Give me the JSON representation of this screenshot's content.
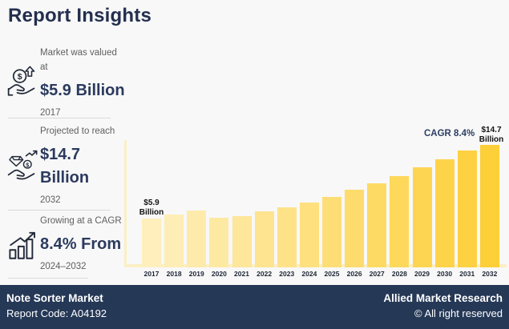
{
  "page": {
    "title": "Report Insights",
    "background": "#F8F8F8"
  },
  "stats": [
    {
      "icon": "money-hand-icon",
      "label": "Market was valued at",
      "value": "$5.9 Billion",
      "period": "2017"
    },
    {
      "icon": "diamond-hand-icon",
      "label": "Projected to reach",
      "value": "$14.7 Billion",
      "period": "2032"
    },
    {
      "icon": "growth-chart-icon",
      "label": "Growing at a CAGR",
      "value": "8.4% From",
      "period": "2024–2032"
    }
  ],
  "chart_data": {
    "type": "bar",
    "title": "CAGR 8.4%",
    "unit": "USD Billion",
    "categories": [
      "2017",
      "2018",
      "2019",
      "2020",
      "2021",
      "2022",
      "2023",
      "2024",
      "2025",
      "2026",
      "2027",
      "2028",
      "2029",
      "2030",
      "2031",
      "2032"
    ],
    "values": [
      5.9,
      6.3,
      6.8,
      6.0,
      6.2,
      6.7,
      7.2,
      7.8,
      8.5,
      9.3,
      10.1,
      11.0,
      12.0,
      13.0,
      14.0,
      14.7
    ],
    "first_bar_label": [
      "$5.9",
      "Billion"
    ],
    "last_bar_label": [
      "$14.7",
      "Billion"
    ],
    "ylim": [
      0,
      15.5
    ],
    "grid": "off",
    "legend": "none",
    "bar_color_start": "#FEEFBD",
    "bar_color_end": "#FDCF38",
    "axis_color": "#FBEFC6",
    "label_color": "#131313"
  },
  "footer": {
    "market": "Note Sorter Market",
    "report_code": "Report Code: A04192",
    "brand": "Allied Market Research",
    "rights": "© All right reserved",
    "background": "#253856"
  }
}
